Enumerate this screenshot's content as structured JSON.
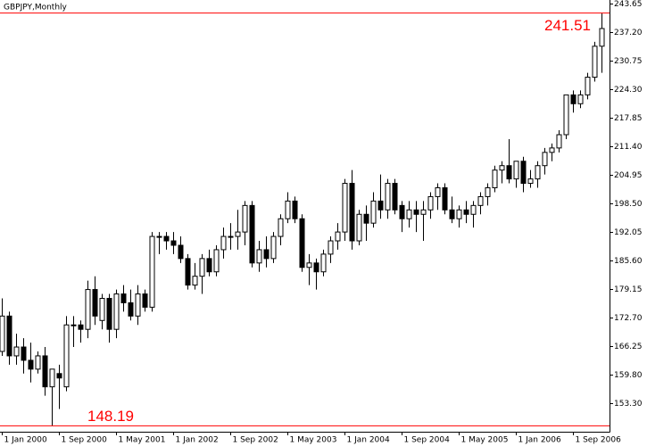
{
  "chart_data": {
    "type": "candlestick",
    "title": "GBPJPY,Monthly",
    "ylim": [
      146.85,
      244.45
    ],
    "yticks": [
      {
        "value": 243.65,
        "label": "243.65"
      },
      {
        "value": 237.2,
        "label": "237.20"
      },
      {
        "value": 230.75,
        "label": "230.75"
      },
      {
        "value": 224.3,
        "label": "224.30"
      },
      {
        "value": 217.85,
        "label": "217.85"
      },
      {
        "value": 211.4,
        "label": "211.40"
      },
      {
        "value": 204.95,
        "label": "204.95"
      },
      {
        "value": 198.5,
        "label": "198.50"
      },
      {
        "value": 192.05,
        "label": "192.05"
      },
      {
        "value": 185.6,
        "label": "185.60"
      },
      {
        "value": 179.15,
        "label": "179.15"
      },
      {
        "value": 172.7,
        "label": "172.70"
      },
      {
        "value": 166.25,
        "label": "166.25"
      },
      {
        "value": 159.8,
        "label": "159.80"
      },
      {
        "value": 153.3,
        "label": "153.30"
      }
    ],
    "xticks": [
      {
        "value": 0,
        "label": "1 Jan 2000"
      },
      {
        "value": 8,
        "label": "1 Sep 2000"
      },
      {
        "value": 16,
        "label": "1 May 2001"
      },
      {
        "value": 24,
        "label": "1 Jan 2002"
      },
      {
        "value": 32,
        "label": "1 Sep 2002"
      },
      {
        "value": 40,
        "label": "1 May 2003"
      },
      {
        "value": 48,
        "label": "1 Jan 2004"
      },
      {
        "value": 56,
        "label": "1 Sep 2004"
      },
      {
        "value": 64,
        "label": "1 May 2005"
      },
      {
        "value": 72,
        "label": "1 Jan 2006"
      },
      {
        "value": 80,
        "label": "1 Sep 2006"
      }
    ],
    "high_line": 241.51,
    "low_line": 148.19,
    "line_color": "#ff0000",
    "open": [
      165,
      173,
      164,
      166,
      163,
      161,
      164,
      157,
      160,
      157,
      171,
      171,
      170,
      179,
      172,
      177,
      170,
      178,
      176,
      173,
      178,
      175,
      191,
      191,
      190,
      189,
      186,
      180,
      182,
      186,
      183,
      188,
      191,
      191,
      192,
      198,
      185,
      188,
      186,
      191,
      195,
      199,
      195,
      184,
      185,
      183,
      187,
      190,
      192,
      203,
      190,
      196,
      194,
      199,
      197,
      203,
      198,
      195,
      197,
      196,
      197,
      200,
      202,
      197,
      195,
      197,
      196,
      198,
      200,
      202,
      206,
      207,
      204,
      208,
      203,
      204,
      207,
      210,
      211,
      214,
      223,
      221,
      223,
      227,
      234
    ],
    "high": [
      177,
      174,
      169,
      168,
      167,
      165,
      166,
      161,
      162,
      173,
      173,
      172,
      181,
      182,
      178,
      178,
      179,
      180,
      179,
      180,
      179,
      192,
      192,
      192,
      192,
      191,
      187,
      185,
      187,
      188,
      189,
      193,
      194,
      197,
      199,
      199,
      190,
      191,
      192,
      196,
      201,
      200,
      196,
      187,
      186,
      188,
      191,
      194,
      204,
      206,
      197,
      198,
      201,
      205,
      204,
      204,
      199,
      199,
      199,
      199,
      201,
      203,
      203,
      200,
      198,
      199,
      199,
      201,
      203,
      207,
      208,
      213,
      208,
      209,
      206,
      208,
      211,
      212,
      215,
      223,
      224,
      224,
      228,
      235,
      241.51
    ],
    "low": [
      164,
      162,
      162,
      160,
      158,
      160,
      155,
      148.19,
      152,
      156,
      166,
      167,
      168,
      171,
      170,
      167,
      168,
      174,
      172,
      171,
      174,
      174,
      187,
      188,
      187,
      185,
      179,
      179,
      178,
      182,
      182,
      186,
      188,
      188,
      189,
      184,
      183,
      184,
      185,
      189,
      194,
      194,
      183,
      180,
      179,
      182,
      185,
      188,
      190,
      188,
      189,
      190,
      193,
      195,
      195,
      196,
      192,
      193,
      192,
      190,
      195,
      197,
      196,
      194,
      193,
      194,
      193,
      196,
      198,
      201,
      203,
      203,
      202,
      201,
      202,
      202,
      205,
      208,
      210,
      213,
      219,
      220,
      222,
      226,
      228
    ],
    "close": [
      173,
      164,
      166,
      163,
      161,
      164,
      157,
      161,
      159,
      171,
      171,
      170,
      179,
      173,
      177,
      170,
      178,
      176,
      173,
      178,
      175,
      191,
      191,
      190,
      189,
      186,
      180,
      182,
      186,
      183,
      188,
      191,
      191,
      192,
      198,
      185,
      188,
      186,
      191,
      195,
      199,
      195,
      184,
      185,
      183,
      187,
      190,
      192,
      203,
      190,
      196,
      194,
      199,
      197,
      203,
      197,
      195,
      197,
      196,
      197,
      200,
      202,
      197,
      195,
      197,
      196,
      198,
      200,
      202,
      206,
      207,
      204,
      208,
      203,
      204,
      207,
      210,
      211,
      214,
      223,
      221,
      223,
      227,
      234,
      238
    ]
  }
}
